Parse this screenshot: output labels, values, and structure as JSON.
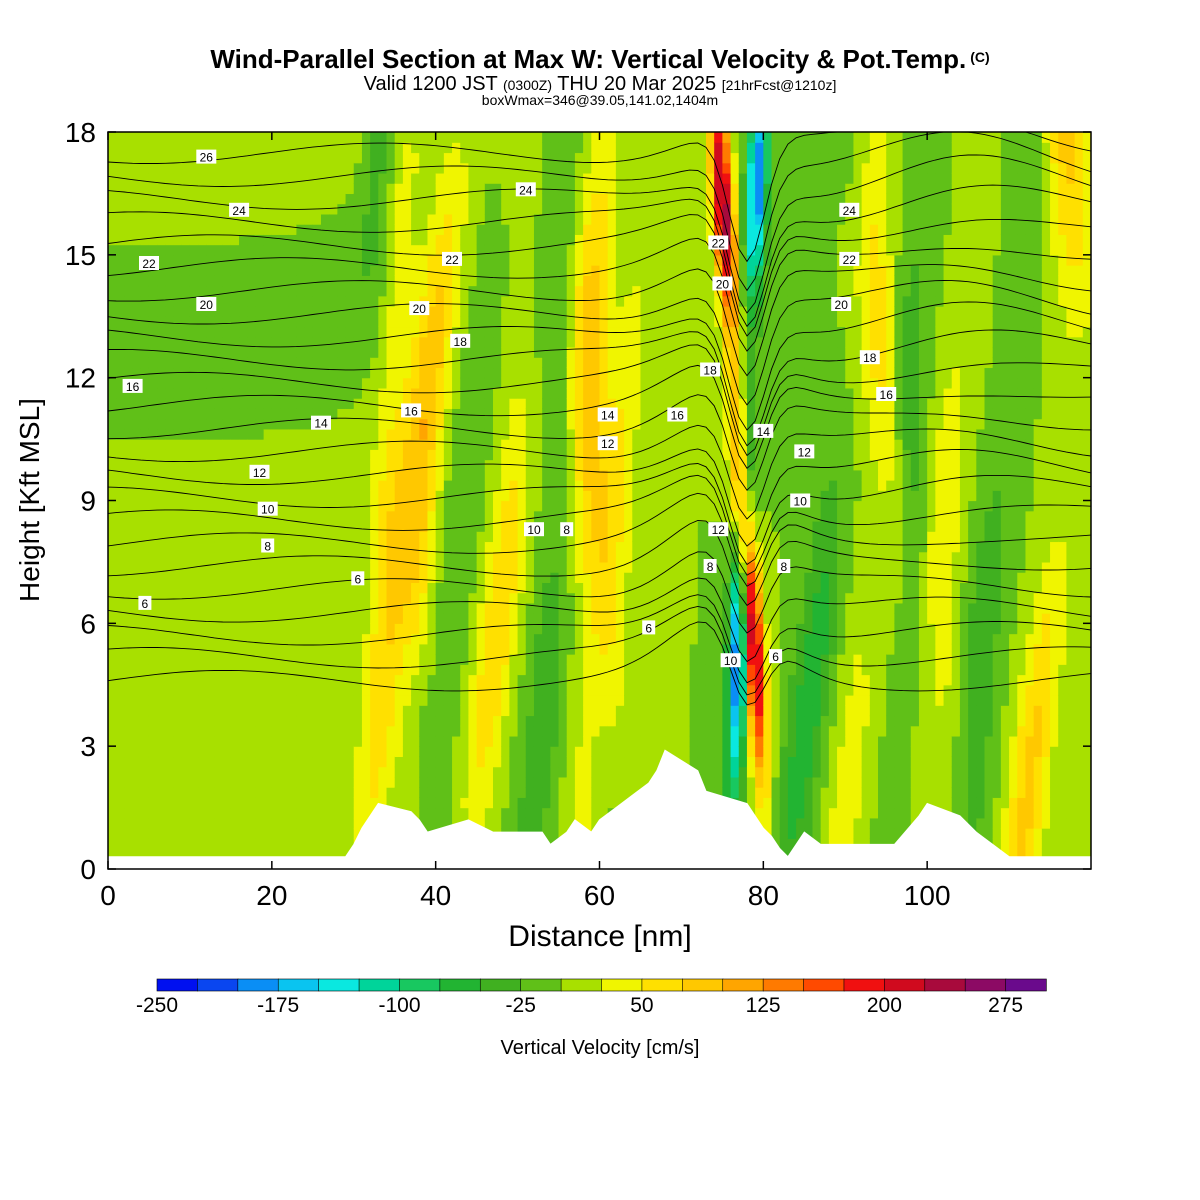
{
  "header": {
    "title": "Wind-Parallel Section at Max W: Vertical Velocity & Pot.Temp.",
    "copyright": "(C)",
    "valid_prefix": "Valid 1200 JST",
    "valid_utc": "(0300Z)",
    "valid_date": "THU 20 Mar 2025",
    "forecast": "[21hrFcst@1210z]",
    "box_info": "boxWmax=346@39.05,141.02,1404m"
  },
  "colors": {
    "scale": [
      "#0010f0",
      "#0a46f0",
      "#0a8ef5",
      "#0ac4f0",
      "#0ae8e0",
      "#00d49a",
      "#18c860",
      "#22b432",
      "#40b020",
      "#60c018",
      "#a8e000",
      "#f0f500",
      "#ffe000",
      "#ffc800",
      "#ffa500",
      "#ff7a00",
      "#ff4a00",
      "#f01010",
      "#d00a1e",
      "#a80a3c",
      "#8c0a64",
      "#6a0a8c"
    ],
    "terrain": "#ffffff",
    "background_field": "#a8e000"
  },
  "chart_data": {
    "type": "heatmap",
    "xlabel": "Distance [nm]",
    "ylabel": "Height [Kft MSL]",
    "xlim": [
      0,
      120
    ],
    "ylim": [
      0,
      18
    ],
    "xticks": [
      0,
      20,
      40,
      60,
      80,
      100
    ],
    "yticks": [
      0,
      3,
      6,
      9,
      12,
      15,
      18
    ],
    "colorbar": {
      "label": "Vertical Velocity [cm/s]",
      "levels": [
        -250,
        -225,
        -200,
        -175,
        -150,
        -125,
        -100,
        -75,
        -50,
        -25,
        0,
        25,
        50,
        75,
        100,
        125,
        150,
        175,
        200,
        225,
        250,
        275,
        300
      ],
      "tick_labels": [
        "-250",
        "-175",
        "-100",
        "-25",
        "50",
        "125",
        "200",
        "275"
      ]
    },
    "terrain": [
      {
        "x": 0,
        "h": 0.3
      },
      {
        "x": 29,
        "h": 0.3
      },
      {
        "x": 30,
        "h": 0.6
      },
      {
        "x": 31,
        "h": 1.0
      },
      {
        "x": 32,
        "h": 1.3
      },
      {
        "x": 33,
        "h": 1.6
      },
      {
        "x": 37,
        "h": 1.4
      },
      {
        "x": 38,
        "h": 1.2
      },
      {
        "x": 39,
        "h": 0.9
      },
      {
        "x": 44,
        "h": 1.2
      },
      {
        "x": 47,
        "h": 0.9
      },
      {
        "x": 53,
        "h": 0.9
      },
      {
        "x": 54,
        "h": 0.6
      },
      {
        "x": 56,
        "h": 0.9
      },
      {
        "x": 57,
        "h": 1.2
      },
      {
        "x": 59,
        "h": 0.9
      },
      {
        "x": 60,
        "h": 1.2
      },
      {
        "x": 62,
        "h": 1.5
      },
      {
        "x": 64,
        "h": 1.8
      },
      {
        "x": 66,
        "h": 2.1
      },
      {
        "x": 67,
        "h": 2.4
      },
      {
        "x": 68,
        "h": 2.9
      },
      {
        "x": 72,
        "h": 2.4
      },
      {
        "x": 73,
        "h": 1.9
      },
      {
        "x": 78,
        "h": 1.6
      },
      {
        "x": 79,
        "h": 1.3
      },
      {
        "x": 80,
        "h": 1.0
      },
      {
        "x": 81,
        "h": 0.8
      },
      {
        "x": 82,
        "h": 0.5
      },
      {
        "x": 83,
        "h": 0.3
      },
      {
        "x": 84,
        "h": 0.6
      },
      {
        "x": 85,
        "h": 0.9
      },
      {
        "x": 87,
        "h": 0.6
      },
      {
        "x": 90,
        "h": 0.6
      },
      {
        "x": 96,
        "h": 0.6
      },
      {
        "x": 99,
        "h": 1.3
      },
      {
        "x": 100,
        "h": 1.6
      },
      {
        "x": 104,
        "h": 1.3
      },
      {
        "x": 106,
        "h": 0.9
      },
      {
        "x": 108,
        "h": 0.6
      },
      {
        "x": 110,
        "h": 0.3
      },
      {
        "x": 120,
        "h": 0.3
      }
    ],
    "w_bands": [
      {
        "x": 31,
        "w": 75
      },
      {
        "x": 34,
        "w": 25
      },
      {
        "x": 36,
        "w": -75
      },
      {
        "x": 38,
        "w": 50
      },
      {
        "x": 41,
        "w": 100
      },
      {
        "x": 44,
        "w": -25
      },
      {
        "x": 47,
        "w": 75
      },
      {
        "x": 51,
        "w": -50
      },
      {
        "x": 55,
        "w": 50
      },
      {
        "x": 58,
        "w": -50
      },
      {
        "x": 62,
        "w": 100
      },
      {
        "x": 65,
        "w": 50
      },
      {
        "x": 70,
        "w": 0
      },
      {
        "x": 86,
        "w": -75
      },
      {
        "x": 89,
        "w": 50
      },
      {
        "x": 93,
        "w": -25
      },
      {
        "x": 97,
        "w": 75
      },
      {
        "x": 101,
        "w": -50
      },
      {
        "x": 105,
        "w": 50
      },
      {
        "x": 109,
        "w": -50
      },
      {
        "x": 114,
        "w": 100
      },
      {
        "x": 118,
        "w": 25
      }
    ],
    "w_updraft": {
      "x_bottom": 80.5,
      "x_top": 74.5,
      "max": 300
    },
    "w_downdraft": {
      "x_bottom": 76,
      "x_top": 79.5,
      "min": -250
    },
    "theta_labels": [
      {
        "text": "26",
        "x": 12,
        "y": 17.4
      },
      {
        "text": "24",
        "x": 16,
        "y": 16.1
      },
      {
        "text": "22",
        "x": 5,
        "y": 14.8
      },
      {
        "text": "20",
        "x": 12,
        "y": 13.8
      },
      {
        "text": "16",
        "x": 3,
        "y": 11.8
      },
      {
        "text": "14",
        "x": 26,
        "y": 10.9
      },
      {
        "text": "12",
        "x": 18.5,
        "y": 9.7
      },
      {
        "text": "10",
        "x": 19.5,
        "y": 8.8
      },
      {
        "text": "8",
        "x": 19.5,
        "y": 7.9
      },
      {
        "text": "6",
        "x": 30.5,
        "y": 7.1
      },
      {
        "text": "6",
        "x": 4.5,
        "y": 6.5
      },
      {
        "text": "24",
        "x": 51,
        "y": 16.6
      },
      {
        "text": "22",
        "x": 42,
        "y": 14.9
      },
      {
        "text": "20",
        "x": 38,
        "y": 13.7
      },
      {
        "text": "18",
        "x": 43,
        "y": 12.9
      },
      {
        "text": "16",
        "x": 37,
        "y": 11.2
      },
      {
        "text": "14",
        "x": 61,
        "y": 11.1
      },
      {
        "text": "12",
        "x": 61,
        "y": 10.4
      },
      {
        "text": "10",
        "x": 52,
        "y": 8.3
      },
      {
        "text": "8",
        "x": 56,
        "y": 8.3
      },
      {
        "text": "6",
        "x": 66,
        "y": 5.9
      },
      {
        "text": "22",
        "x": 74.5,
        "y": 15.3
      },
      {
        "text": "20",
        "x": 75,
        "y": 14.3
      },
      {
        "text": "18",
        "x": 73.5,
        "y": 12.2
      },
      {
        "text": "16",
        "x": 69.5,
        "y": 11.1
      },
      {
        "text": "14",
        "x": 80,
        "y": 10.7
      },
      {
        "text": "12",
        "x": 74.5,
        "y": 8.3
      },
      {
        "text": "8",
        "x": 73.5,
        "y": 7.4
      },
      {
        "text": "10",
        "x": 76,
        "y": 5.1
      },
      {
        "text": "8",
        "x": 82.5,
        "y": 7.4
      },
      {
        "text": "6",
        "x": 81.5,
        "y": 5.2
      },
      {
        "text": "12",
        "x": 85,
        "y": 10.2
      },
      {
        "text": "10",
        "x": 84.5,
        "y": 9.0
      },
      {
        "text": "24",
        "x": 90.5,
        "y": 16.1
      },
      {
        "text": "22",
        "x": 90.5,
        "y": 14.9
      },
      {
        "text": "20",
        "x": 89.5,
        "y": 13.8
      },
      {
        "text": "18",
        "x": 93,
        "y": 12.5
      },
      {
        "text": "16",
        "x": 95,
        "y": 11.6
      }
    ]
  }
}
